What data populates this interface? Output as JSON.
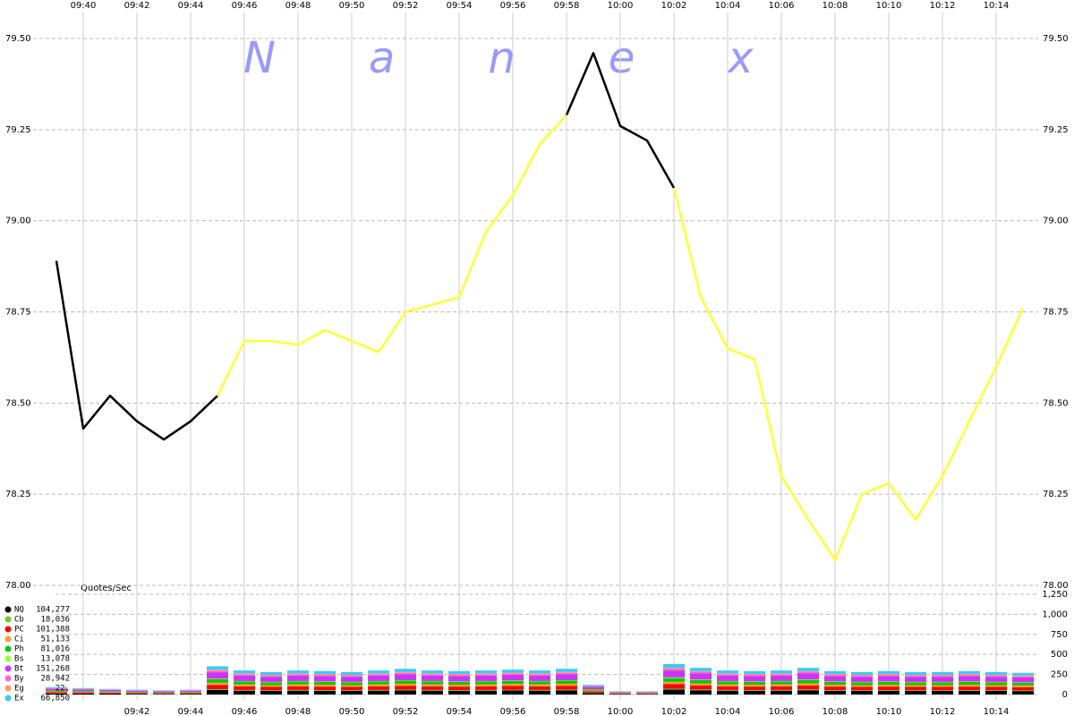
{
  "chart_data": {
    "type": "line",
    "watermark": "Nanex",
    "x": [
      "09:39",
      "09:40",
      "09:41",
      "09:42",
      "09:43",
      "09:44",
      "09:45",
      "09:46",
      "09:47",
      "09:48",
      "09:49",
      "09:50",
      "09:51",
      "09:52",
      "09:53",
      "09:54",
      "09:55",
      "09:56",
      "09:57",
      "09:58",
      "09:59",
      "10:00",
      "10:01",
      "10:02",
      "10:03",
      "10:04",
      "10:05",
      "10:06",
      "10:07",
      "10:08",
      "10:09",
      "10:10",
      "10:11",
      "10:12",
      "10:13",
      "10:14",
      "10:15"
    ],
    "xlim": [
      "09:39",
      "10:15"
    ],
    "xticks": [
      "09:40",
      "09:42",
      "09:44",
      "09:46",
      "09:48",
      "09:50",
      "09:52",
      "09:54",
      "09:56",
      "09:58",
      "10:00",
      "10:02",
      "10:04",
      "10:06",
      "10:08",
      "10:10",
      "10:12",
      "10:14"
    ],
    "ylim": [
      78,
      79.5
    ],
    "yticks": [
      {
        "value": 78,
        "label": "78.00"
      },
      {
        "value": 78.25,
        "label": "78.25"
      },
      {
        "value": 78.5,
        "label": "78.50"
      },
      {
        "value": 78.75,
        "label": "78.75"
      },
      {
        "value": 79,
        "label": "79.00"
      },
      {
        "value": 79.25,
        "label": "79.25"
      },
      {
        "value": 79.5,
        "label": "79.50"
      }
    ],
    "y2_label": "Quotes/Sec",
    "y2lim": [
      0,
      1250
    ],
    "y2ticks": [
      0,
      250,
      500,
      750,
      {
        "value": 1000,
        "label": "1,000"
      },
      {
        "value": 1250,
        "label": "1,250"
      }
    ],
    "grid": true,
    "series": [
      {
        "color": "#000000",
        "values": [
          78.89,
          78.43,
          78.52,
          78.45,
          78.4,
          78.45,
          78.52,
          null,
          null,
          null,
          null,
          null,
          null,
          null,
          null,
          null,
          null,
          null,
          null,
          79.29,
          79.46,
          79.26,
          79.22,
          79.09,
          null,
          null,
          null,
          null,
          null,
          null,
          null,
          null,
          null,
          null,
          null,
          null,
          null
        ]
      },
      {
        "color": "#ffff33",
        "values": [
          null,
          null,
          null,
          null,
          null,
          null,
          78.52,
          78.67,
          78.67,
          78.66,
          78.7,
          78.67,
          78.64,
          78.75,
          78.77,
          78.79,
          78.97,
          79.07,
          79.21,
          79.29,
          null,
          null,
          null,
          79.09,
          78.79,
          78.65,
          78.62,
          78.3,
          78.18,
          78.07,
          78.25,
          78.28,
          78.18,
          78.3,
          78.45,
          78.6,
          78.76
        ]
      },
      {
        "type": "bar",
        "axis": "y2",
        "name": "NQ",
        "total": "104,277",
        "color": "#000000",
        "values": [
          14,
          13,
          11,
          10,
          8,
          10,
          56,
          48,
          45,
          48,
          46,
          45,
          48,
          51,
          48,
          46,
          48,
          50,
          48,
          51,
          19,
          6,
          6,
          61,
          53,
          48,
          46,
          48,
          53,
          46,
          45,
          46,
          45,
          45,
          46,
          45,
          43
        ]
      },
      {
        "type": "bar",
        "axis": "y2",
        "name": "Cb",
        "total": "18,036",
        "color": "#66cc33",
        "values": [
          3,
          2,
          2,
          2,
          2,
          2,
          11,
          9,
          8,
          9,
          9,
          8,
          9,
          10,
          9,
          9,
          9,
          9,
          9,
          10,
          4,
          1,
          1,
          11,
          10,
          9,
          9,
          9,
          10,
          9,
          8,
          9,
          8,
          8,
          9,
          8,
          8
        ]
      },
      {
        "type": "bar",
        "axis": "y2",
        "name": "PC",
        "total": "101,388",
        "color": "#ff0000",
        "values": [
          14,
          12,
          11,
          9,
          8,
          9,
          53,
          45,
          42,
          45,
          44,
          42,
          45,
          48,
          45,
          44,
          45,
          47,
          45,
          48,
          18,
          6,
          6,
          57,
          50,
          45,
          44,
          45,
          50,
          44,
          42,
          44,
          42,
          42,
          44,
          42,
          41
        ]
      },
      {
        "type": "bar",
        "axis": "y2",
        "name": "Ci",
        "total": "51,133",
        "color": "#ff9933",
        "values": [
          7,
          6,
          6,
          5,
          4,
          5,
          28,
          24,
          22,
          24,
          23,
          22,
          24,
          26,
          24,
          23,
          24,
          25,
          24,
          26,
          10,
          3,
          3,
          30,
          26,
          24,
          23,
          24,
          26,
          23,
          22,
          23,
          22,
          22,
          23,
          22,
          22
        ]
      },
      {
        "type": "bar",
        "axis": "y2",
        "name": "Ph",
        "total": "81,016",
        "color": "#00cc00",
        "values": [
          11,
          10,
          8,
          7,
          6,
          7,
          42,
          36,
          34,
          36,
          35,
          34,
          36,
          38,
          36,
          35,
          36,
          37,
          36,
          38,
          14,
          5,
          5,
          46,
          40,
          36,
          35,
          36,
          40,
          35,
          34,
          35,
          34,
          34,
          35,
          34,
          32
        ]
      },
      {
        "type": "bar",
        "axis": "y2",
        "name": "Bs",
        "total": "13,078",
        "color": "#99ff33",
        "values": [
          2,
          2,
          1,
          1,
          1,
          1,
          7,
          6,
          6,
          6,
          6,
          6,
          6,
          6,
          6,
          6,
          6,
          6,
          6,
          6,
          2,
          1,
          1,
          8,
          7,
          6,
          6,
          6,
          7,
          6,
          6,
          6,
          6,
          6,
          6,
          6,
          5
        ]
      },
      {
        "type": "bar",
        "axis": "y2",
        "name": "Bt",
        "total": "151,268",
        "color": "#cc33ff",
        "values": [
          21,
          18,
          16,
          14,
          12,
          14,
          81,
          69,
          64,
          69,
          67,
          64,
          69,
          74,
          69,
          67,
          69,
          71,
          69,
          74,
          28,
          9,
          9,
          87,
          76,
          69,
          67,
          69,
          76,
          67,
          64,
          67,
          64,
          64,
          67,
          64,
          62
        ]
      },
      {
        "type": "bar",
        "axis": "y2",
        "name": "By",
        "total": "28,942",
        "color": "#ff66cc",
        "values": [
          5,
          4,
          4,
          3,
          3,
          3,
          18,
          15,
          14,
          15,
          15,
          14,
          15,
          16,
          15,
          15,
          15,
          16,
          15,
          16,
          6,
          2,
          2,
          19,
          17,
          15,
          15,
          15,
          17,
          15,
          14,
          15,
          14,
          14,
          15,
          14,
          14
        ]
      },
      {
        "type": "bar",
        "axis": "y2",
        "name": "Eg",
        "total": "22,",
        "color": "#ff9966",
        "values": [
          4,
          3,
          3,
          2,
          2,
          2,
          14,
          12,
          11,
          12,
          12,
          11,
          12,
          13,
          12,
          12,
          12,
          12,
          12,
          13,
          5,
          2,
          2,
          15,
          13,
          12,
          12,
          12,
          13,
          12,
          11,
          12,
          11,
          11,
          12,
          11,
          11
        ]
      },
      {
        "type": "bar",
        "axis": "y2",
        "name": "Ex",
        "total": "66,850",
        "color": "#33ccff",
        "values": [
          11,
          10,
          8,
          7,
          6,
          7,
          42,
          36,
          34,
          36,
          35,
          34,
          36,
          38,
          36,
          35,
          36,
          37,
          36,
          38,
          14,
          5,
          5,
          46,
          40,
          36,
          35,
          36,
          40,
          35,
          34,
          35,
          34,
          34,
          35,
          34,
          32
        ]
      }
    ]
  }
}
